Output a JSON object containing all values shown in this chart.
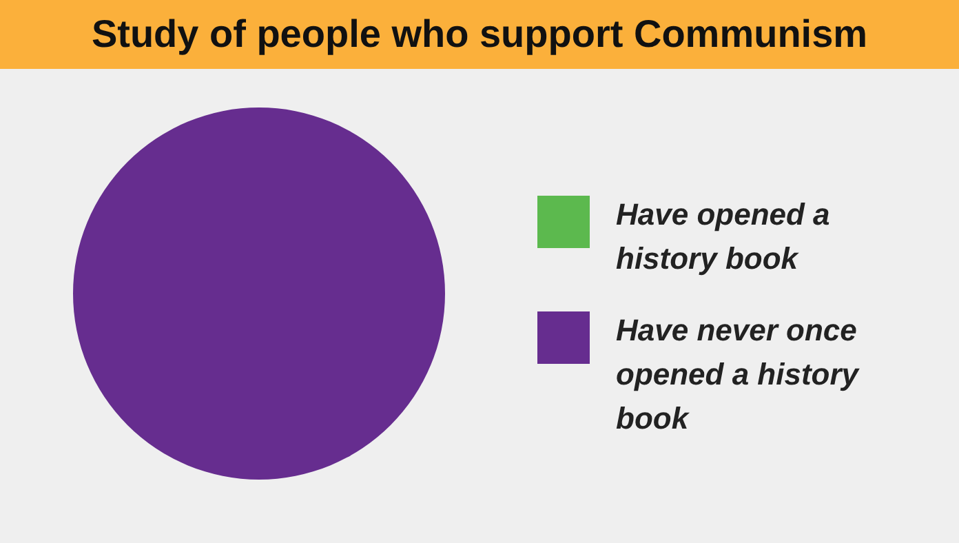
{
  "chart_data": {
    "type": "pie",
    "title": "Study of people who support Communism",
    "categories": [
      "Have opened a history book",
      "Have never once opened a history book"
    ],
    "values": [
      0,
      100
    ],
    "colors": [
      "#5cb94e",
      "#662d8f"
    ],
    "legend": "right"
  }
}
